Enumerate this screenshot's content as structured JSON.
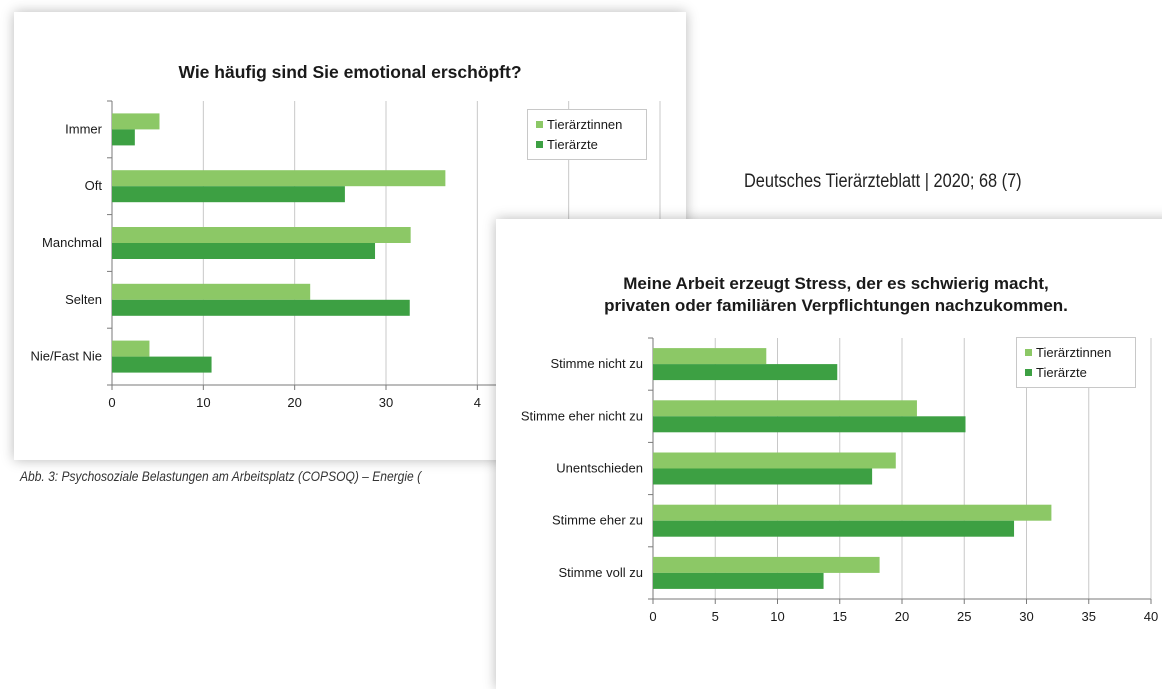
{
  "journal": "Deutsches Tierärzteblatt | 2020; 68 (7)",
  "caption": "Abb. 3: Psychosoziale Belastungen am Arbeitsplatz (COPSOQ) – Energie (",
  "colors": {
    "light": "#8cc866",
    "dark": "#3da043",
    "grid": "#c8c8c8",
    "axis": "#7a7a7a"
  },
  "chart_data": [
    {
      "type": "bar",
      "orientation": "horizontal",
      "title": "Wie häufig sind Sie emotional erschöpft?",
      "categories": [
        "Immer",
        "Oft",
        "Manchmal",
        "Selten",
        "Nie/Fast Nie"
      ],
      "series": [
        {
          "name": "Tierärztinnen",
          "values": [
            5.2,
            36.5,
            32.7,
            21.7,
            4.1
          ]
        },
        {
          "name": "Tierärzte",
          "values": [
            2.5,
            25.5,
            28.8,
            32.6,
            10.9
          ]
        }
      ],
      "xlim": [
        0,
        60
      ],
      "xticks": [
        "0",
        "10",
        "20",
        "30",
        "4"
      ],
      "legend": "top-right",
      "grid": true
    },
    {
      "type": "bar",
      "orientation": "horizontal",
      "title": "Meine Arbeit erzeugt Stress, der es schwierig macht,\nprivaten oder familiären Verpflichtungen nachzukommen.",
      "categories": [
        "Stimme nicht zu",
        "Stimme eher nicht zu",
        "Unentschieden",
        "Stimme eher zu",
        "Stimme voll zu"
      ],
      "series": [
        {
          "name": "Tierärztinnen",
          "values": [
            9.1,
            21.2,
            19.5,
            32.0,
            18.2
          ]
        },
        {
          "name": "Tierärzte",
          "values": [
            14.8,
            25.1,
            17.6,
            29.0,
            13.7
          ]
        }
      ],
      "xlim": [
        0,
        40
      ],
      "xticks": [
        "0",
        "5",
        "10",
        "15",
        "20",
        "25",
        "30",
        "35",
        "40"
      ],
      "legend": "top-right",
      "grid": true
    }
  ]
}
